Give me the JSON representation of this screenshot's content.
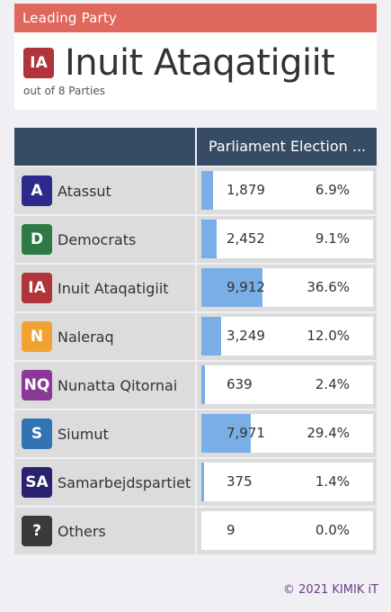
{
  "leading": {
    "header": "Leading Party",
    "badge": "IA",
    "badge_color": "#b0343a",
    "name": "Inuit Ataqatigiit",
    "subtitle": "out of 8 Parties"
  },
  "table": {
    "column_header": "Parliament Election ..."
  },
  "colors": {
    "header_bg": "#e0675c",
    "table_header_bg": "#354c64",
    "bar": "#79aee6",
    "footer_text": "#6b3f86"
  },
  "rows": [
    {
      "badge": "A",
      "badge_color": "#2c2a8c",
      "name": "Atassut",
      "votes": "1,879",
      "percent": "6.9%",
      "share": 0.069
    },
    {
      "badge": "D",
      "badge_color": "#2e7a45",
      "name": "Democrats",
      "votes": "2,452",
      "percent": "9.1%",
      "share": 0.091
    },
    {
      "badge": "IA",
      "badge_color": "#b0343a",
      "name": "Inuit Ataqatigiit",
      "votes": "9,912",
      "percent": "36.6%",
      "share": 0.366
    },
    {
      "badge": "N",
      "badge_color": "#f2a230",
      "name": "Naleraq",
      "votes": "3,249",
      "percent": "12.0%",
      "share": 0.12
    },
    {
      "badge": "NQ",
      "badge_color": "#8a3a96",
      "name": "Nunatta Qitornai",
      "votes": "639",
      "percent": "2.4%",
      "share": 0.024
    },
    {
      "badge": "S",
      "badge_color": "#3273b5",
      "name": "Siumut",
      "votes": "7,971",
      "percent": "29.4%",
      "share": 0.294
    },
    {
      "badge": "SA",
      "badge_color": "#2a2270",
      "name": "Samarbejdspartiet",
      "votes": "375",
      "percent": "1.4%",
      "share": 0.014
    },
    {
      "badge": "?",
      "badge_color": "#3a3a3a",
      "name": "Others",
      "votes": "9",
      "percent": "0.0%",
      "share": 0.0
    }
  ],
  "footer": "© 2021 KIMIK iT"
}
